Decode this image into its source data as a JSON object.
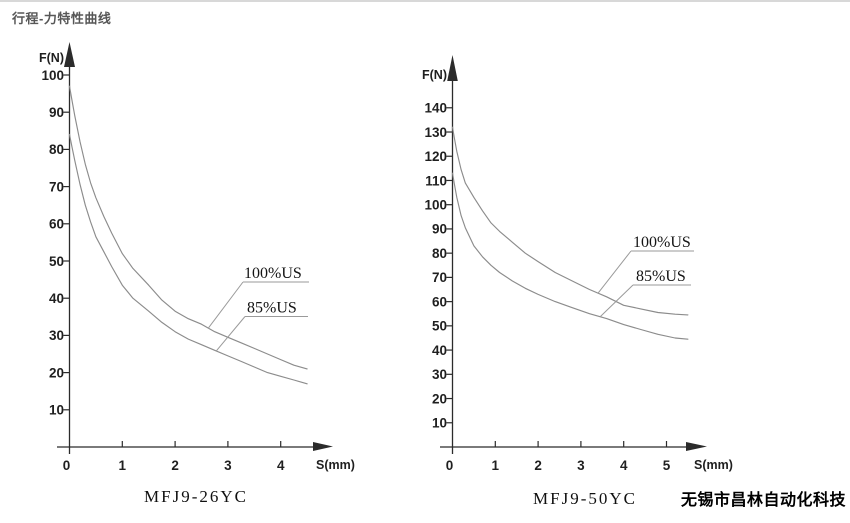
{
  "page": {
    "title": "行程-力特性曲线",
    "watermark": "无锡市昌林自动化科技",
    "colors": {
      "axis": "#2b2b2b",
      "curve": "#8c8c8c",
      "leader": "#9a9a9a",
      "text": "#1f1f1f",
      "background": "#ffffff"
    }
  },
  "chart_data": [
    {
      "type": "line",
      "title": "MFJ9-26YC",
      "xlabel": "S(mm)",
      "ylabel": "F(N)",
      "xlim": [
        0,
        4.8
      ],
      "ylim": [
        0,
        105
      ],
      "xticks": [
        0,
        1,
        2,
        3,
        4
      ],
      "yticks": [
        10,
        20,
        30,
        40,
        50,
        60,
        70,
        80,
        90,
        100
      ],
      "grid": false,
      "legend_position": "inline-leader-labels",
      "series": [
        {
          "name": "100%US",
          "x": [
            0,
            0.05,
            0.1,
            0.2,
            0.3,
            0.4,
            0.5,
            0.65,
            0.8,
            1,
            1.2,
            1.5,
            1.75,
            2,
            2.25,
            2.5,
            2.75,
            3,
            3.25,
            3.5,
            3.75,
            4,
            4.25,
            4.5
          ],
          "y": [
            97,
            93,
            89,
            82,
            76,
            71,
            67,
            62,
            57.5,
            52,
            48,
            43.5,
            39.5,
            36.5,
            34.5,
            33,
            31,
            29.5,
            28,
            26.5,
            25,
            23.5,
            22,
            21
          ]
        },
        {
          "name": "85%US",
          "x": [
            0,
            0.05,
            0.1,
            0.2,
            0.3,
            0.4,
            0.5,
            0.65,
            0.8,
            1,
            1.2,
            1.5,
            1.75,
            2,
            2.25,
            2.5,
            2.75,
            3,
            3.25,
            3.5,
            3.75,
            4,
            4.25,
            4.5
          ],
          "y": [
            84,
            80.5,
            77,
            70.5,
            65,
            60.5,
            56.5,
            52.5,
            48.5,
            43.5,
            40,
            36.5,
            33.5,
            31,
            29,
            27.5,
            26,
            24.5,
            23,
            21.5,
            20,
            19,
            18,
            17
          ]
        }
      ]
    },
    {
      "type": "line",
      "title": "MFJ9-50YC",
      "xlabel": "S(mm)",
      "ylabel": "F(N)",
      "xlim": [
        0,
        5.8
      ],
      "ylim": [
        0,
        150
      ],
      "xticks": [
        0,
        1,
        2,
        3,
        4,
        5
      ],
      "yticks": [
        10,
        20,
        30,
        40,
        50,
        60,
        70,
        80,
        90,
        100,
        110,
        120,
        130,
        140
      ],
      "grid": false,
      "legend_position": "inline-leader-labels",
      "series": [
        {
          "name": "100%US",
          "x": [
            0,
            0.05,
            0.1,
            0.2,
            0.3,
            0.5,
            0.7,
            0.9,
            1.1,
            1.4,
            1.7,
            2,
            2.4,
            2.8,
            3.2,
            3.6,
            4,
            4.4,
            4.8,
            5.2,
            5.5
          ],
          "y": [
            132,
            127,
            122,
            114.5,
            109,
            103,
            97.5,
            92.5,
            89,
            84.5,
            80,
            76.5,
            72,
            68.5,
            65,
            62,
            58.5,
            57,
            55.5,
            54.8,
            54.5
          ]
        },
        {
          "name": "85%US",
          "x": [
            0,
            0.05,
            0.1,
            0.2,
            0.3,
            0.5,
            0.7,
            0.9,
            1.1,
            1.4,
            1.7,
            2,
            2.4,
            2.8,
            3.2,
            3.6,
            4,
            4.4,
            4.8,
            5.2,
            5.5
          ],
          "y": [
            113,
            108,
            103,
            95.5,
            90.5,
            83,
            78.5,
            75,
            72,
            68.5,
            65.5,
            63,
            60,
            57.5,
            55,
            53,
            50.5,
            48.5,
            46.5,
            45,
            44.5
          ]
        }
      ]
    }
  ]
}
